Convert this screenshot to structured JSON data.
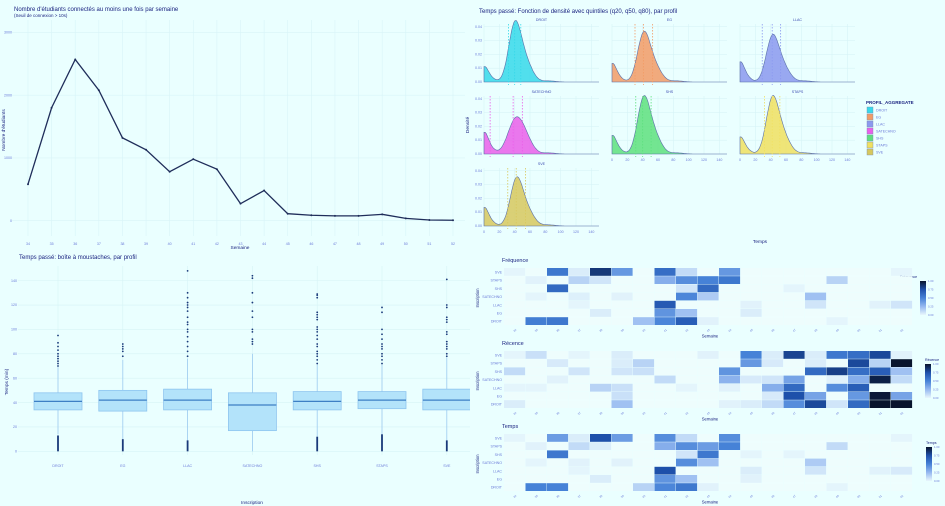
{
  "line_chart": {
    "title": "Nombre d'étudiants connectés au moins une fois par semaine",
    "subtitle": "(Seuil de connexion > 10s)",
    "xlabel": "Semaine",
    "ylabel": "Nombre d'étudiants"
  },
  "density_chart": {
    "title": "Temps passé: Fonction de densité avec quintiles (q20, q50, q80), par profil",
    "xlabel": "Temps",
    "ylabel": "Densité",
    "legend_title": "PROFIL_AGGREGATE"
  },
  "box_chart": {
    "title": "Temps passé: boîte à moustaches, par profil",
    "xlabel": "Inscription",
    "ylabel": "Temps (min)"
  },
  "heatmaps": {
    "frequence": {
      "title": "Fréquence",
      "legend": "Fréquence"
    },
    "recence": {
      "title": "Récence",
      "legend": "Récence"
    },
    "temps": {
      "title": "Temps",
      "legend": "Temps"
    },
    "xlabel": "Semaine",
    "ylabel": "Inscription"
  },
  "chart_data": [
    {
      "type": "line",
      "title": "Nombre d'étudiants connectés au moins une fois par semaine",
      "subtitle": "(Seuil de connexion > 10s)",
      "xlabel": "Semaine",
      "ylabel": "Nombre d'étudiants",
      "x": [
        34,
        35,
        36,
        37,
        38,
        39,
        40,
        41,
        42,
        43,
        44,
        45,
        46,
        47,
        48,
        49,
        50,
        51,
        52
      ],
      "values": [
        580,
        1800,
        2570,
        2080,
        1320,
        1130,
        780,
        980,
        820,
        270,
        480,
        110,
        85,
        75,
        75,
        100,
        35,
        10,
        5
      ],
      "ylim": [
        -150,
        3200
      ],
      "yticks": [
        0,
        1000,
        2000,
        3000
      ],
      "grid": true,
      "color": "#1f2d5a"
    },
    {
      "type": "area",
      "title": "Temps passé: Fonction de densité avec quintiles (q20, q50, q80), par profil",
      "xlabel": "Temps",
      "ylabel": "Densité",
      "xticks": [
        0,
        20,
        40,
        60,
        80,
        100,
        120,
        140
      ],
      "yticks": [
        0.0,
        0.01,
        0.02,
        0.03,
        0.04
      ],
      "ylim": [
        0,
        0.042
      ],
      "legend_position": "right",
      "facets": [
        {
          "name": "DROIT",
          "color": "#36d9ea",
          "quintiles": [
            32,
            40,
            48
          ],
          "peak": 0.04,
          "peak_x": 40,
          "left_bump": 0.01
        },
        {
          "name": "EG",
          "color": "#f29b66",
          "quintiles": [
            30,
            41,
            53
          ],
          "peak": 0.033,
          "peak_x": 41,
          "left_bump": 0.012
        },
        {
          "name": "LLAC",
          "color": "#8b99ef",
          "quintiles": [
            29,
            42,
            53
          ],
          "peak": 0.031,
          "peak_x": 42,
          "left_bump": 0.013
        },
        {
          "name": "SATECHNO",
          "color": "#ea5fea",
          "quintiles": [
            8,
            38,
            50
          ],
          "peak": 0.024,
          "peak_x": 41,
          "left_bump": 0.014
        },
        {
          "name": "SHS",
          "color": "#5ee07e",
          "quintiles": [
            31,
            40,
            51
          ],
          "peak": 0.038,
          "peak_x": 41,
          "left_bump": 0.012
        },
        {
          "name": "STAPS",
          "color": "#f0e060",
          "quintiles": [
            32,
            42,
            52
          ],
          "peak": 0.038,
          "peak_x": 42,
          "left_bump": 0.011
        },
        {
          "name": "SVE",
          "color": "#d7c85e",
          "quintiles": [
            31,
            42,
            54
          ],
          "peak": 0.032,
          "peak_x": 42,
          "left_bump": 0.012
        }
      ]
    },
    {
      "type": "box",
      "title": "Temps passé: boîte à moustaches, par profil",
      "xlabel": "Inscription",
      "ylabel": "Temps (min)",
      "categories": [
        "DROIT",
        "EG",
        "LLAC",
        "SATECHNO",
        "SHS",
        "STAPS",
        "SVE"
      ],
      "yticks": [
        0,
        20,
        40,
        60,
        80,
        100,
        120,
        140
      ],
      "ylim": [
        -3,
        152
      ],
      "series": [
        {
          "name": "DROIT",
          "q1": 34,
          "median": 41,
          "q3": 48,
          "lower_whisker": 14,
          "upper_whisker": 69,
          "outliers_high": [
            70,
            72,
            74,
            76,
            78,
            80,
            83,
            86,
            89,
            95
          ],
          "outliers_low_max": 13
        },
        {
          "name": "EG",
          "q1": 33,
          "median": 42,
          "q3": 50,
          "lower_whisker": 10,
          "upper_whisker": 75,
          "outliers_high": [
            78,
            82,
            84,
            86,
            88
          ],
          "outliers_low_max": 10
        },
        {
          "name": "LLAC",
          "q1": 34,
          "median": 42,
          "q3": 51,
          "lower_whisker": 9,
          "upper_whisker": 76,
          "outliers_high": [
            78,
            82,
            86,
            90,
            94,
            98,
            100,
            104,
            106,
            110,
            115,
            118,
            120,
            122,
            126,
            130,
            148
          ],
          "outliers_low_max": 9
        },
        {
          "name": "SATECHNO",
          "q1": 17,
          "median": 38,
          "q3": 48,
          "lower_whisker": 0,
          "upper_whisker": 80,
          "outliers_high": [
            88,
            90,
            92,
            98,
            100,
            110,
            115,
            122,
            130,
            142,
            144
          ],
          "outliers_low_max": null
        },
        {
          "name": "SHS",
          "q1": 34,
          "median": 41,
          "q3": 49,
          "lower_whisker": 12,
          "upper_whisker": 71,
          "outliers_high": [
            72,
            75,
            78,
            80,
            82,
            86,
            88,
            92,
            95,
            98,
            100,
            102,
            108,
            110,
            112,
            114,
            126,
            128,
            129
          ],
          "outliers_low_max": 12
        },
        {
          "name": "STAPS",
          "q1": 35,
          "median": 42,
          "q3": 49,
          "lower_whisker": 14,
          "upper_whisker": 71,
          "outliers_high": [
            72,
            75,
            78,
            80,
            84,
            86,
            88,
            92,
            96,
            100,
            114,
            118
          ],
          "outliers_low_max": 14
        },
        {
          "name": "SVE",
          "q1": 34,
          "median": 42,
          "q3": 51,
          "lower_whisker": 9,
          "upper_whisker": 77,
          "outliers_high": [
            78,
            80,
            84,
            86,
            88,
            90,
            96,
            98,
            106,
            108,
            110,
            118,
            120,
            141
          ],
          "outliers_low_max": 9
        }
      ],
      "fill": "#b3e3fa",
      "stroke": "#8ec5ef"
    },
    {
      "type": "heatmap",
      "title": "Fréquence",
      "xlabel": "Semaine",
      "ylabel": "Inscription",
      "x": [
        34,
        35,
        36,
        37,
        38,
        39,
        40,
        41,
        42,
        43,
        44,
        45,
        46,
        47,
        48,
        49,
        50,
        51,
        52
      ],
      "rows": [
        "SVE",
        "STAPS",
        "SHS",
        "SATECHNO",
        "LLAC",
        "EG",
        "DROIT"
      ],
      "legend_ticks": [
        0.0,
        0.25,
        0.5,
        0.75,
        1.0
      ],
      "values": [
        [
          0.02,
          0.0,
          0.55,
          0.05,
          0.85,
          0.4,
          0.0,
          0.6,
          0.12,
          0.0,
          0.4,
          0.0,
          0.0,
          0.0,
          0.0,
          0.0,
          0.0,
          0.0,
          0.02
        ],
        [
          0.0,
          0.03,
          0.0,
          0.15,
          0.08,
          0.0,
          0.0,
          0.3,
          0.45,
          0.5,
          0.55,
          0.0,
          0.0,
          0.0,
          0.0,
          0.15,
          0.0,
          0.0,
          0.0
        ],
        [
          0.0,
          0.0,
          0.62,
          0.0,
          0.0,
          0.0,
          0.0,
          0.0,
          0.08,
          0.62,
          0.0,
          0.0,
          0.0,
          0.02,
          0.0,
          0.0,
          0.0,
          0.0,
          0.0
        ],
        [
          0.0,
          0.02,
          0.0,
          0.04,
          0.0,
          0.03,
          0.0,
          0.0,
          0.48,
          0.18,
          0.0,
          0.0,
          0.0,
          0.0,
          0.22,
          0.0,
          0.0,
          0.0,
          0.0
        ],
        [
          0.0,
          0.0,
          0.0,
          0.02,
          0.0,
          0.0,
          0.0,
          0.7,
          0.0,
          0.0,
          0.0,
          0.03,
          0.0,
          0.0,
          0.08,
          0.0,
          0.0,
          0.03,
          0.08
        ],
        [
          0.0,
          0.0,
          0.0,
          0.0,
          0.05,
          0.0,
          0.0,
          0.42,
          0.22,
          0.0,
          0.0,
          0.05,
          0.0,
          0.0,
          0.0,
          0.0,
          0.0,
          0.0,
          0.0
        ],
        [
          0.0,
          0.52,
          0.55,
          0.0,
          0.0,
          0.0,
          0.22,
          0.48,
          0.68,
          0.03,
          0.0,
          0.0,
          0.0,
          0.0,
          0.0,
          0.02,
          0.0,
          0.0,
          0.0
        ]
      ]
    },
    {
      "type": "heatmap",
      "title": "Récence",
      "xlabel": "Semaine",
      "ylabel": "Inscription",
      "x": [
        34,
        35,
        36,
        37,
        38,
        39,
        40,
        41,
        42,
        43,
        44,
        45,
        46,
        47,
        48,
        49,
        50,
        51,
        52
      ],
      "rows": [
        "SVE",
        "STAPS",
        "SHS",
        "SATECHNO",
        "LLAC",
        "EG",
        "DROIT"
      ],
      "legend_ticks": [
        0.0,
        0.25,
        0.5,
        0.75,
        1.0
      ],
      "values": [
        [
          0.02,
          0.1,
          0.0,
          0.02,
          0.0,
          0.05,
          0.0,
          0.0,
          0.0,
          0.03,
          0.0,
          0.5,
          0.05,
          0.8,
          0.05,
          0.55,
          0.6,
          0.78,
          0.03
        ],
        [
          0.0,
          0.0,
          0.06,
          0.0,
          0.0,
          0.05,
          0.15,
          0.0,
          0.0,
          0.0,
          0.0,
          0.4,
          0.06,
          0.0,
          0.05,
          0.0,
          0.78,
          0.15,
          1.0
        ],
        [
          0.12,
          0.0,
          0.0,
          0.08,
          0.0,
          0.08,
          0.1,
          0.0,
          0.0,
          0.0,
          0.42,
          0.0,
          0.0,
          0.0,
          0.62,
          0.82,
          0.6,
          0.68,
          0.22
        ],
        [
          0.0,
          0.0,
          0.03,
          0.0,
          0.0,
          0.0,
          0.0,
          0.12,
          0.0,
          0.0,
          0.28,
          0.06,
          0.08,
          0.35,
          0.0,
          0.03,
          0.3,
          0.95,
          0.12
        ],
        [
          0.02,
          0.02,
          0.0,
          0.0,
          0.15,
          0.1,
          0.0,
          0.0,
          0.02,
          0.0,
          0.03,
          0.0,
          0.3,
          0.62,
          0.0,
          0.45,
          0.68,
          0.0,
          0.0
        ],
        [
          0.0,
          0.0,
          0.0,
          0.0,
          0.0,
          0.1,
          0.0,
          0.0,
          0.0,
          0.0,
          0.0,
          0.0,
          0.06,
          0.75,
          0.35,
          0.0,
          0.4,
          0.98,
          0.35
        ],
        [
          0.05,
          0.0,
          0.0,
          0.0,
          0.0,
          0.22,
          0.0,
          0.0,
          0.0,
          0.0,
          0.03,
          0.05,
          0.12,
          0.45,
          0.78,
          0.08,
          0.62,
          1.0,
          1.0
        ]
      ]
    },
    {
      "type": "heatmap",
      "title": "Temps",
      "xlabel": "Semaine",
      "ylabel": "Inscription",
      "x": [
        34,
        35,
        36,
        37,
        38,
        39,
        40,
        41,
        42,
        43,
        44,
        45,
        46,
        47,
        48,
        49,
        50,
        51,
        52
      ],
      "rows": [
        "SVE",
        "STAPS",
        "SHS",
        "SATECHNO",
        "LLAC",
        "EG",
        "DROIT"
      ],
      "legend_ticks": [
        0.0,
        0.25,
        0.5,
        0.75,
        1.0
      ],
      "values": [
        [
          0.02,
          0.0,
          0.38,
          0.05,
          0.75,
          0.38,
          0.0,
          0.45,
          0.12,
          0.0,
          0.45,
          0.0,
          0.0,
          0.0,
          0.0,
          0.0,
          0.0,
          0.0,
          0.02
        ],
        [
          0.0,
          0.03,
          0.0,
          0.12,
          0.05,
          0.0,
          0.0,
          0.3,
          0.45,
          0.38,
          0.5,
          0.0,
          0.0,
          0.0,
          0.0,
          0.12,
          0.0,
          0.0,
          0.0
        ],
        [
          0.0,
          0.0,
          0.55,
          0.0,
          0.0,
          0.0,
          0.0,
          0.0,
          0.08,
          0.55,
          0.0,
          0.02,
          0.0,
          0.02,
          0.0,
          0.0,
          0.0,
          0.0,
          0.0
        ],
        [
          0.0,
          0.02,
          0.0,
          0.03,
          0.0,
          0.03,
          0.0,
          0.0,
          0.45,
          0.22,
          0.0,
          0.0,
          0.0,
          0.0,
          0.18,
          0.0,
          0.0,
          0.0,
          0.0
        ],
        [
          0.0,
          0.0,
          0.0,
          0.02,
          0.0,
          0.0,
          0.0,
          0.75,
          0.0,
          0.0,
          0.0,
          0.05,
          0.0,
          0.0,
          0.08,
          0.0,
          0.0,
          0.03,
          0.06
        ],
        [
          0.0,
          0.0,
          0.0,
          0.0,
          0.05,
          0.0,
          0.0,
          0.42,
          0.22,
          0.0,
          0.0,
          0.03,
          0.0,
          0.0,
          0.0,
          0.0,
          0.0,
          0.0,
          0.0
        ],
        [
          0.0,
          0.5,
          0.5,
          0.0,
          0.0,
          0.0,
          0.15,
          0.48,
          0.55,
          0.03,
          0.0,
          0.0,
          0.0,
          0.0,
          0.0,
          0.02,
          0.0,
          0.0,
          0.0
        ]
      ]
    }
  ]
}
